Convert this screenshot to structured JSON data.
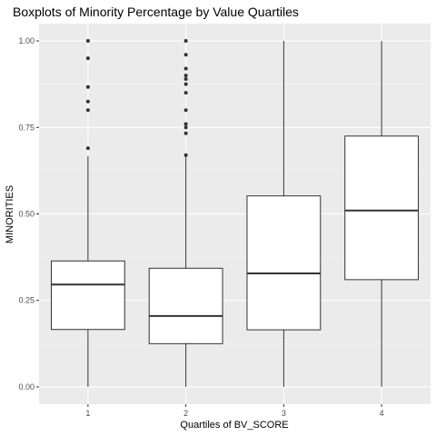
{
  "chart_data": {
    "type": "boxplot",
    "title": "Boxplots of Minority Percentage by Value Quartiles",
    "xlabel": "Quartiles of BV_SCORE",
    "ylabel": "MINORITIES",
    "categories": [
      "1",
      "2",
      "3",
      "4"
    ],
    "ylim": [
      -0.05,
      1.05
    ],
    "yticks": [
      0.0,
      0.25,
      0.5,
      0.75,
      1.0
    ],
    "ytick_labels": [
      "0.00",
      "0.25",
      "0.50",
      "0.75",
      "1.00"
    ],
    "grid": true,
    "legend": "none",
    "colors": {
      "panel": "#ebebeb",
      "grid_major": "#ffffff",
      "grid_minor": "#f5f5f5",
      "box_fill": "#ffffff",
      "box_line": "#333333",
      "outlier": "#333333"
    },
    "boxes": [
      {
        "category": "1",
        "whisker_low": 0.0,
        "q1": 0.166,
        "median": 0.296,
        "q3": 0.364,
        "whisker_high": 0.667,
        "outliers": [
          0.69,
          0.8,
          0.825,
          0.867,
          0.95,
          1.0
        ]
      },
      {
        "category": "2",
        "whisker_low": 0.0,
        "q1": 0.125,
        "median": 0.205,
        "q3": 0.343,
        "whisker_high": 0.667,
        "outliers": [
          0.67,
          0.733,
          0.75,
          0.76,
          0.8,
          0.85,
          0.875,
          0.89,
          0.9,
          0.92,
          0.96,
          1.0
        ]
      },
      {
        "category": "3",
        "whisker_low": 0.0,
        "q1": 0.165,
        "median": 0.328,
        "q3": 0.552,
        "whisker_high": 1.0,
        "outliers": []
      },
      {
        "category": "4",
        "whisker_low": 0.0,
        "q1": 0.31,
        "median": 0.51,
        "q3": 0.725,
        "whisker_high": 1.0,
        "outliers": []
      }
    ]
  }
}
